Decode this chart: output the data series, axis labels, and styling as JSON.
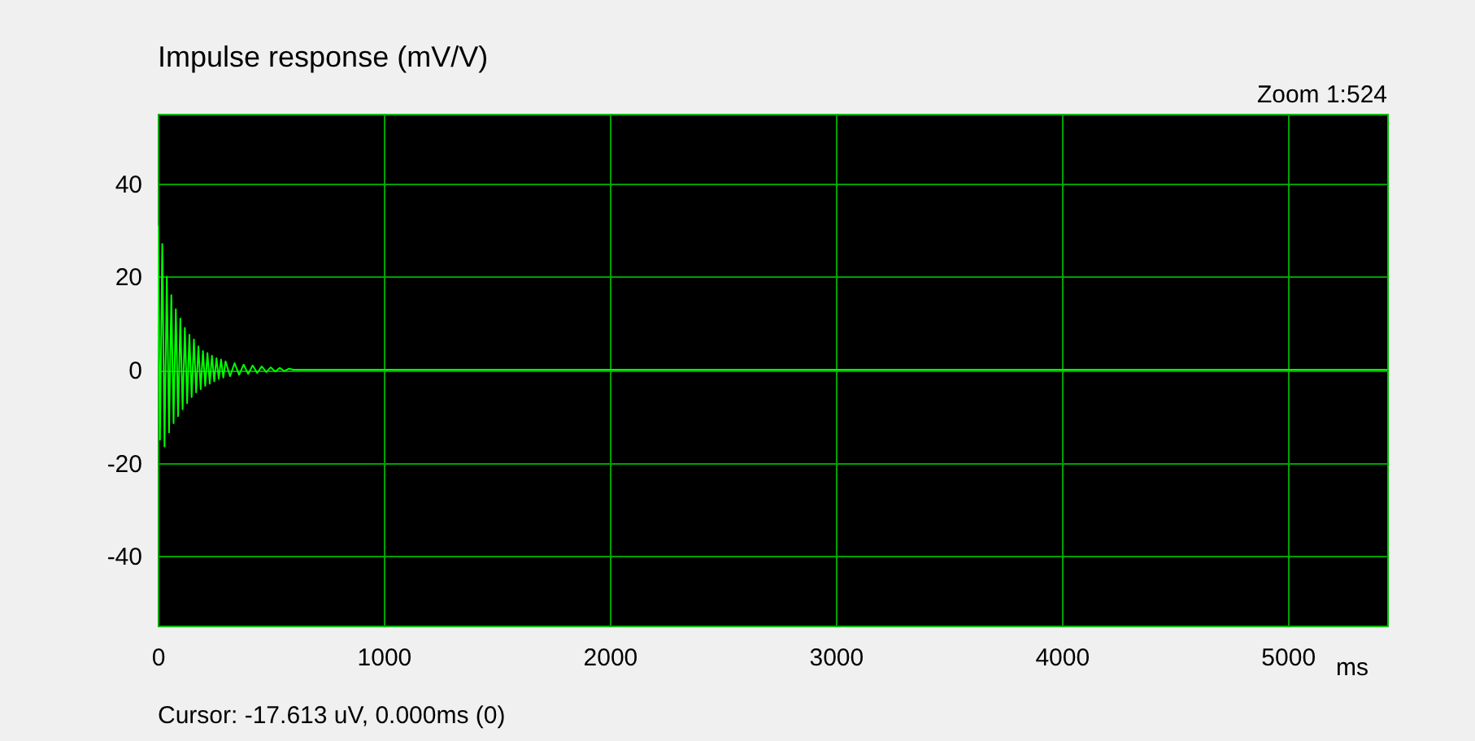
{
  "chart_data": {
    "type": "line",
    "title": "Impulse response (mV/V)",
    "xlabel": "ms",
    "annotations": [
      "Zoom 1:524",
      "Cursor: -17.613 uV, 0.000ms (0)"
    ],
    "x": [
      0,
      10,
      20,
      30,
      40,
      50,
      60,
      70,
      80,
      90,
      100,
      110,
      120,
      130,
      140,
      150,
      160,
      170,
      180,
      190,
      200,
      210,
      220,
      230,
      240,
      250,
      260,
      270,
      280,
      290,
      300,
      320,
      340,
      360,
      380,
      400,
      420,
      440,
      460,
      480,
      500,
      520,
      540,
      560,
      580,
      600,
      5440
    ],
    "series": [
      {
        "color": "#00ff00",
        "values": [
          31,
          -15,
          27,
          -16.5,
          20,
          -13.5,
          16,
          -11.5,
          13,
          -10,
          11,
          -8.5,
          9,
          -7.2,
          7.5,
          -5.9,
          6.5,
          -4.9,
          5,
          -4.2,
          4,
          -3.5,
          3.6,
          -3,
          3,
          -2.5,
          2.5,
          -2,
          2.2,
          -1.7,
          1.8,
          -1.4,
          1.4,
          -1.1,
          1.1,
          -0.9,
          0.9,
          -0.7,
          0.7,
          -0.5,
          0.5,
          -0.4,
          0.4,
          -0.3,
          0.2,
          0,
          0
        ]
      }
    ],
    "xlim": [
      0,
      5440
    ],
    "xticks": [
      0,
      1000,
      2000,
      3000,
      4000,
      5000
    ],
    "ylim": [
      -55,
      55
    ],
    "yticks": [
      -40,
      -20,
      0,
      20,
      40
    ],
    "grid": true
  }
}
